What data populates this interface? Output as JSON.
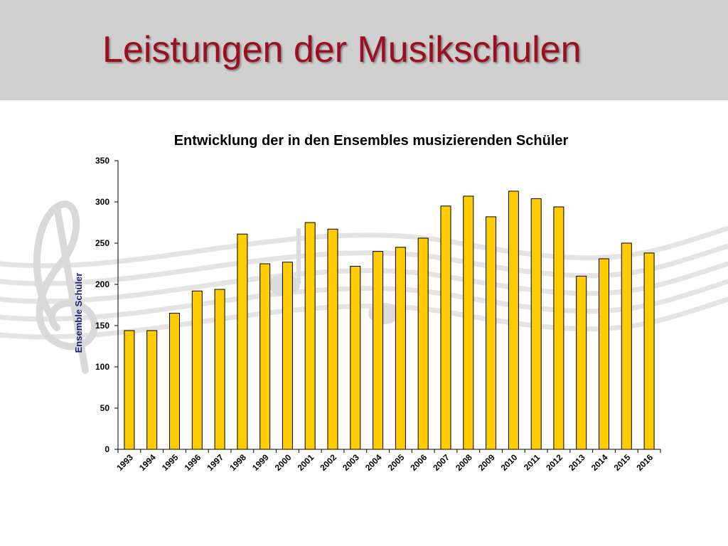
{
  "slide": {
    "title": "Leistungen der Musikschulen"
  },
  "colors": {
    "header_bg": "#cfcfcf",
    "title": "#9b1020",
    "bar_fill": "#ffcc00",
    "bar_stroke": "#000000",
    "ylabel": "#1a1a7a"
  },
  "chart_data": {
    "type": "bar",
    "title": "Entwicklung der in den Ensembles musizierenden Schüler",
    "xlabel": "",
    "ylabel": "Ensemble Schüler",
    "ylim": [
      0,
      350
    ],
    "yticks": [
      0,
      50,
      100,
      150,
      200,
      250,
      300,
      350
    ],
    "grid": false,
    "categories": [
      "1993",
      "1994",
      "1995",
      "1996",
      "1997",
      "1998",
      "1999",
      "2000",
      "2001",
      "2002",
      "2003",
      "2004",
      "2005",
      "2006",
      "2007",
      "2008",
      "2009",
      "2010",
      "2011",
      "2012",
      "2013",
      "2014",
      "2015",
      "2016"
    ],
    "values": [
      144,
      144,
      165,
      192,
      194,
      261,
      225,
      227,
      275,
      267,
      222,
      240,
      245,
      256,
      295,
      307,
      282,
      313,
      304,
      294,
      210,
      231,
      250,
      238
    ]
  }
}
